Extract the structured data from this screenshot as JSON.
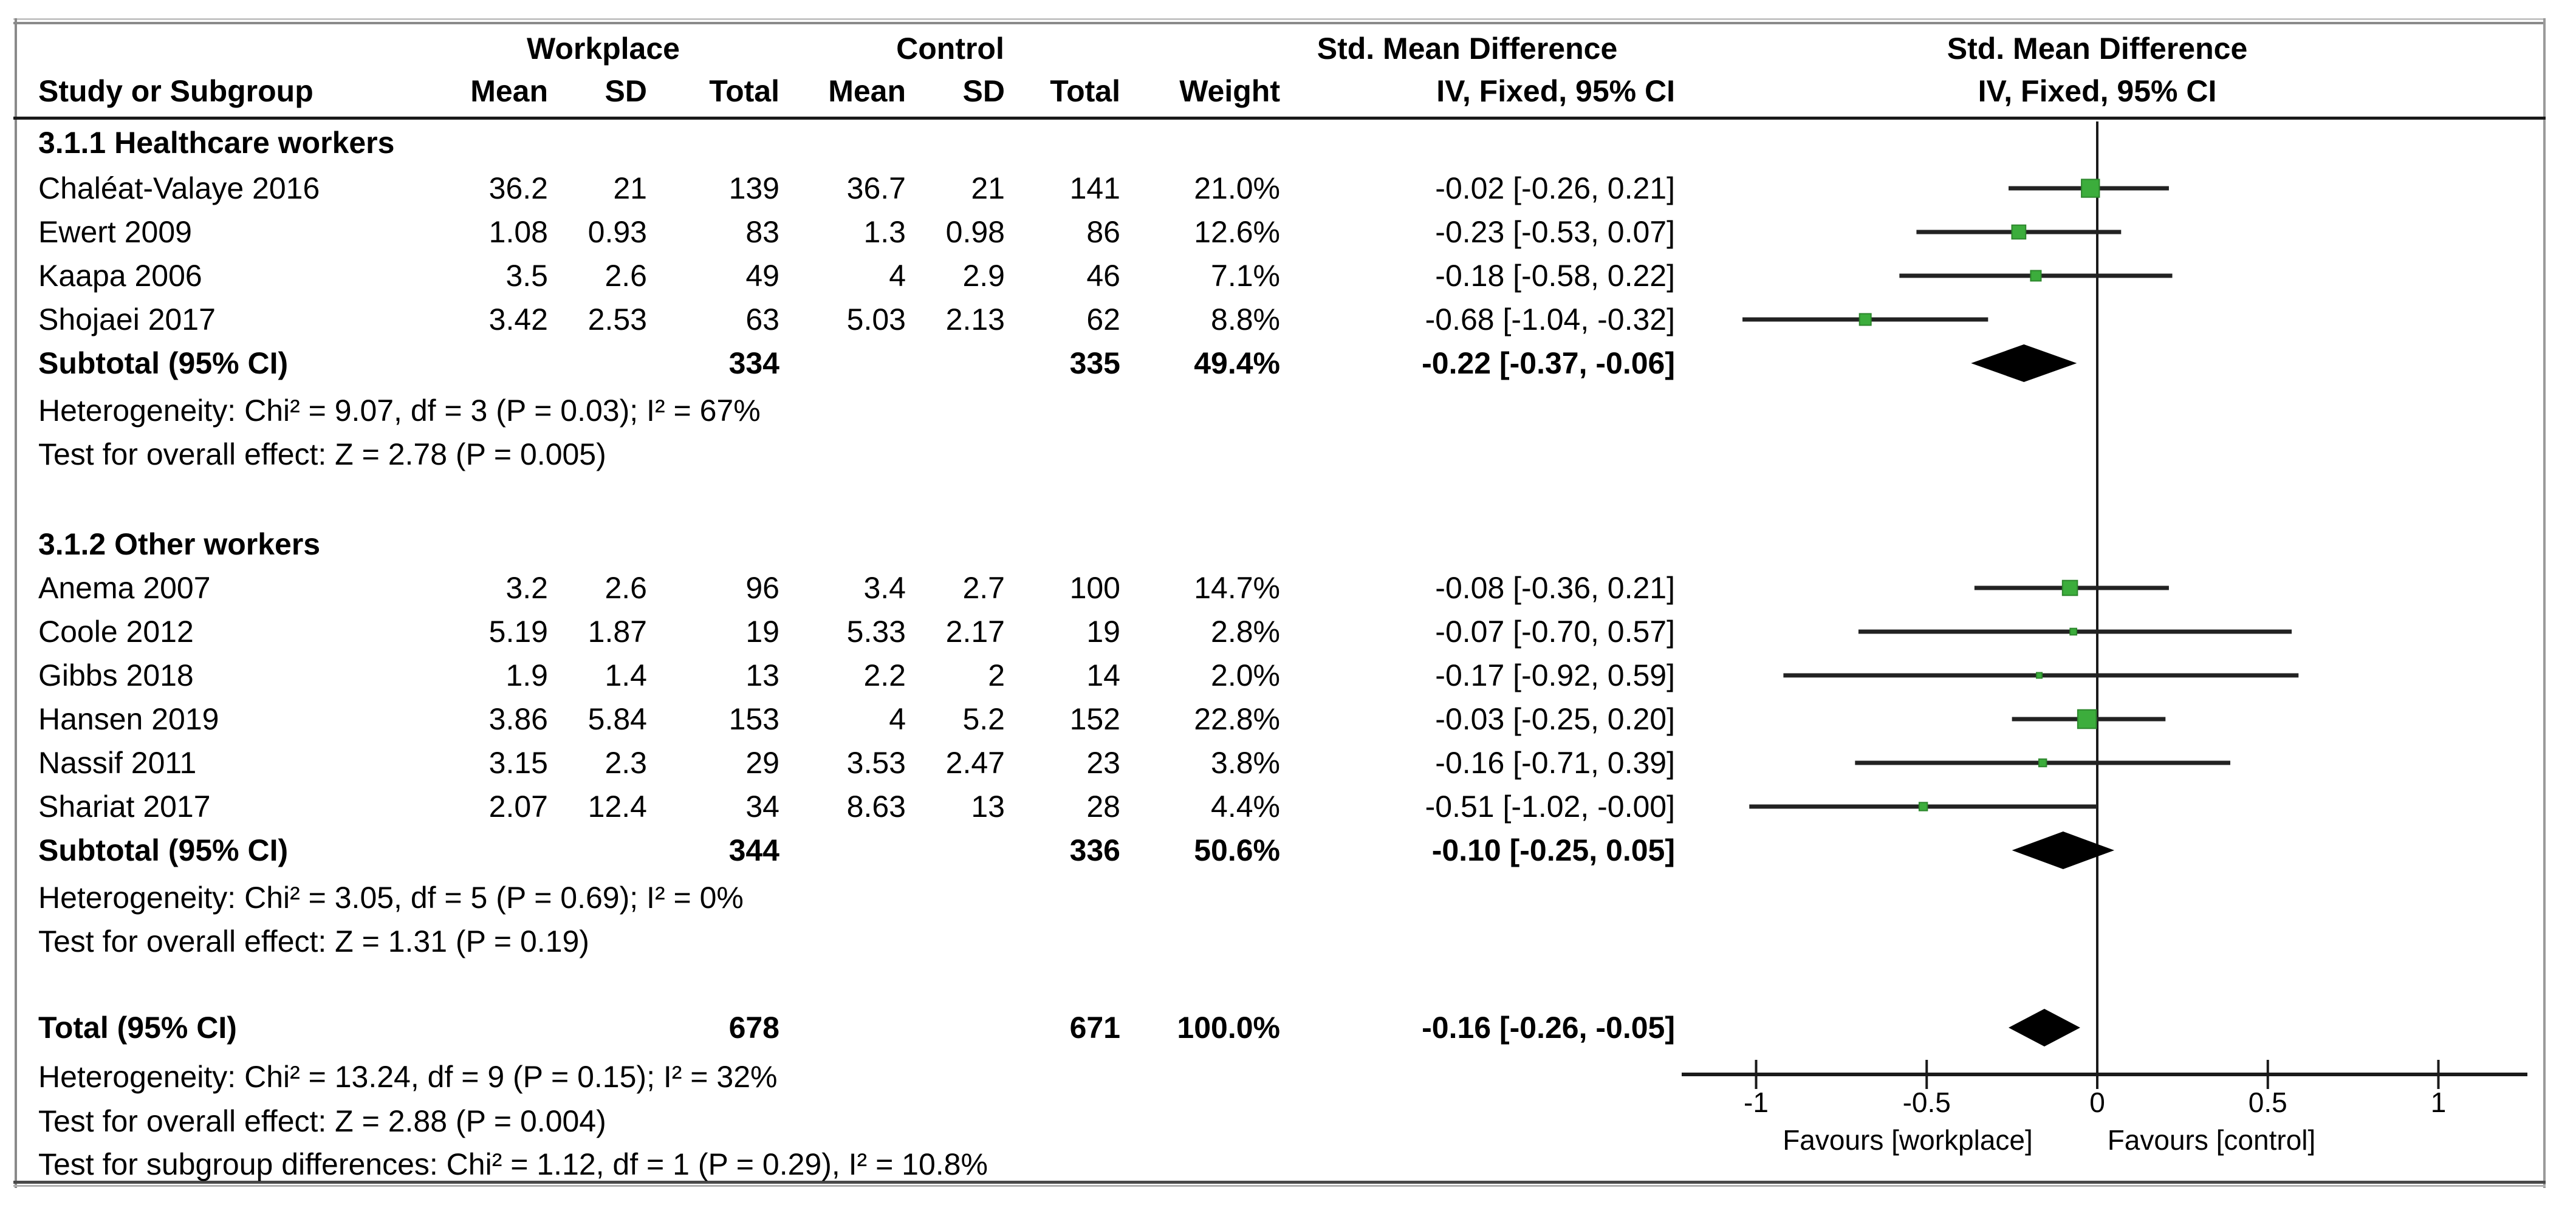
{
  "header": {
    "workplace": "Workplace",
    "control": "Control",
    "smd": "Std. Mean Difference",
    "study_or_subgroup": "Study or Subgroup",
    "mean": "Mean",
    "sd": "SD",
    "total": "Total",
    "weight": "Weight",
    "iv_fixed": "IV, Fixed, 95% CI",
    "plot_title": "Std. Mean Difference",
    "plot_subtitle": "IV, Fixed, 95% CI"
  },
  "colors": {
    "marker_green": "#3CAD3C",
    "marker_green_border": "#2C862C",
    "line_black": "#1a1a1a",
    "border_gray": "#8a8a8a"
  },
  "chart_data": {
    "type": "forest",
    "effect_measure": "Std. Mean Difference (IV, Fixed, 95% CI)",
    "x_ticks": [
      {
        "value": -1,
        "label": "-1"
      },
      {
        "value": -0.5,
        "label": "-0.5"
      },
      {
        "value": 0,
        "label": "0"
      },
      {
        "value": 0.5,
        "label": "0.5"
      },
      {
        "value": 1,
        "label": "1"
      }
    ],
    "xlim": [
      -1.22,
      1.26
    ],
    "favours_left": "Favours [workplace]",
    "favours_right": "Favours [control]",
    "groups": [
      {
        "heading": "3.1.1 Healthcare workers",
        "studies": [
          {
            "study": "Chaléat-Valaye 2016",
            "mean1": "36.2",
            "sd1": "21",
            "total1": "139",
            "mean2": "36.7",
            "sd2": "21",
            "total2": "141",
            "weight": "21.0%",
            "ci_text": "-0.02 [-0.26, 0.21]",
            "effect": -0.02,
            "lo": -0.26,
            "hi": 0.21,
            "w": 21.0
          },
          {
            "study": "Ewert 2009",
            "mean1": "1.08",
            "sd1": "0.93",
            "total1": "83",
            "mean2": "1.3",
            "sd2": "0.98",
            "total2": "86",
            "weight": "12.6%",
            "ci_text": "-0.23 [-0.53, 0.07]",
            "effect": -0.23,
            "lo": -0.53,
            "hi": 0.07,
            "w": 12.6
          },
          {
            "study": "Kaapa 2006",
            "mean1": "3.5",
            "sd1": "2.6",
            "total1": "49",
            "mean2": "4",
            "sd2": "2.9",
            "total2": "46",
            "weight": "7.1%",
            "ci_text": "-0.18 [-0.58, 0.22]",
            "effect": -0.18,
            "lo": -0.58,
            "hi": 0.22,
            "w": 7.1
          },
          {
            "study": "Shojaei 2017",
            "mean1": "3.42",
            "sd1": "2.53",
            "total1": "63",
            "mean2": "5.03",
            "sd2": "2.13",
            "total2": "62",
            "weight": "8.8%",
            "ci_text": "-0.68 [-1.04, -0.32]",
            "effect": -0.68,
            "lo": -1.04,
            "hi": -0.32,
            "w": 8.8
          }
        ],
        "subtotal": {
          "label": "Subtotal (95% CI)",
          "total1": "334",
          "total2": "335",
          "weight": "49.4%",
          "ci_text": "-0.22 [-0.37, -0.06]",
          "effect": -0.22,
          "lo": -0.37,
          "hi": -0.06
        },
        "footnotes": [
          "Heterogeneity: Chi² = 9.07, df = 3 (P = 0.03); I² = 67%",
          "Test for overall effect: Z = 2.78 (P = 0.005)"
        ]
      },
      {
        "heading": "3.1.2 Other workers",
        "studies": [
          {
            "study": "Anema 2007",
            "mean1": "3.2",
            "sd1": "2.6",
            "total1": "96",
            "mean2": "3.4",
            "sd2": "2.7",
            "total2": "100",
            "weight": "14.7%",
            "ci_text": "-0.08 [-0.36, 0.21]",
            "effect": -0.08,
            "lo": -0.36,
            "hi": 0.21,
            "w": 14.7
          },
          {
            "study": "Coole 2012",
            "mean1": "5.19",
            "sd1": "1.87",
            "total1": "19",
            "mean2": "5.33",
            "sd2": "2.17",
            "total2": "19",
            "weight": "2.8%",
            "ci_text": "-0.07 [-0.70, 0.57]",
            "effect": -0.07,
            "lo": -0.7,
            "hi": 0.57,
            "w": 2.8
          },
          {
            "study": "Gibbs 2018",
            "mean1": "1.9",
            "sd1": "1.4",
            "total1": "13",
            "mean2": "2.2",
            "sd2": "2",
            "total2": "14",
            "weight": "2.0%",
            "ci_text": "-0.17 [-0.92, 0.59]",
            "effect": -0.17,
            "lo": -0.92,
            "hi": 0.59,
            "w": 2.0
          },
          {
            "study": "Hansen 2019",
            "mean1": "3.86",
            "sd1": "5.84",
            "total1": "153",
            "mean2": "4",
            "sd2": "5.2",
            "total2": "152",
            "weight": "22.8%",
            "ci_text": "-0.03 [-0.25, 0.20]",
            "effect": -0.03,
            "lo": -0.25,
            "hi": 0.2,
            "w": 22.8
          },
          {
            "study": "Nassif 2011",
            "mean1": "3.15",
            "sd1": "2.3",
            "total1": "29",
            "mean2": "3.53",
            "sd2": "2.47",
            "total2": "23",
            "weight": "3.8%",
            "ci_text": "-0.16 [-0.71, 0.39]",
            "effect": -0.16,
            "lo": -0.71,
            "hi": 0.39,
            "w": 3.8
          },
          {
            "study": "Shariat 2017",
            "mean1": "2.07",
            "sd1": "12.4",
            "total1": "34",
            "mean2": "8.63",
            "sd2": "13",
            "total2": "28",
            "weight": "4.4%",
            "ci_text": "-0.51 [-1.02, -0.00]",
            "effect": -0.51,
            "lo": -1.02,
            "hi": 0.0,
            "w": 4.4
          }
        ],
        "subtotal": {
          "label": "Subtotal (95% CI)",
          "total1": "344",
          "total2": "336",
          "weight": "50.6%",
          "ci_text": "-0.10 [-0.25, 0.05]",
          "effect": -0.1,
          "lo": -0.25,
          "hi": 0.05
        },
        "footnotes": [
          "Heterogeneity: Chi² = 3.05, df = 5 (P = 0.69); I² = 0%",
          "Test for overall effect: Z = 1.31 (P = 0.19)"
        ]
      }
    ],
    "total": {
      "label": "Total (95% CI)",
      "total1": "678",
      "total2": "671",
      "weight": "100.0%",
      "ci_text": "-0.16 [-0.26, -0.05]",
      "effect": -0.16,
      "lo": -0.26,
      "hi": -0.05
    },
    "total_footnotes": [
      "Heterogeneity: Chi² = 13.24, df = 9 (P = 0.15); I² = 32%",
      "Test for overall effect: Z = 2.88 (P = 0.004)",
      "Test for subgroup differences: Chi² = 1.12, df = 1 (P = 0.29), I² = 10.8%"
    ]
  }
}
